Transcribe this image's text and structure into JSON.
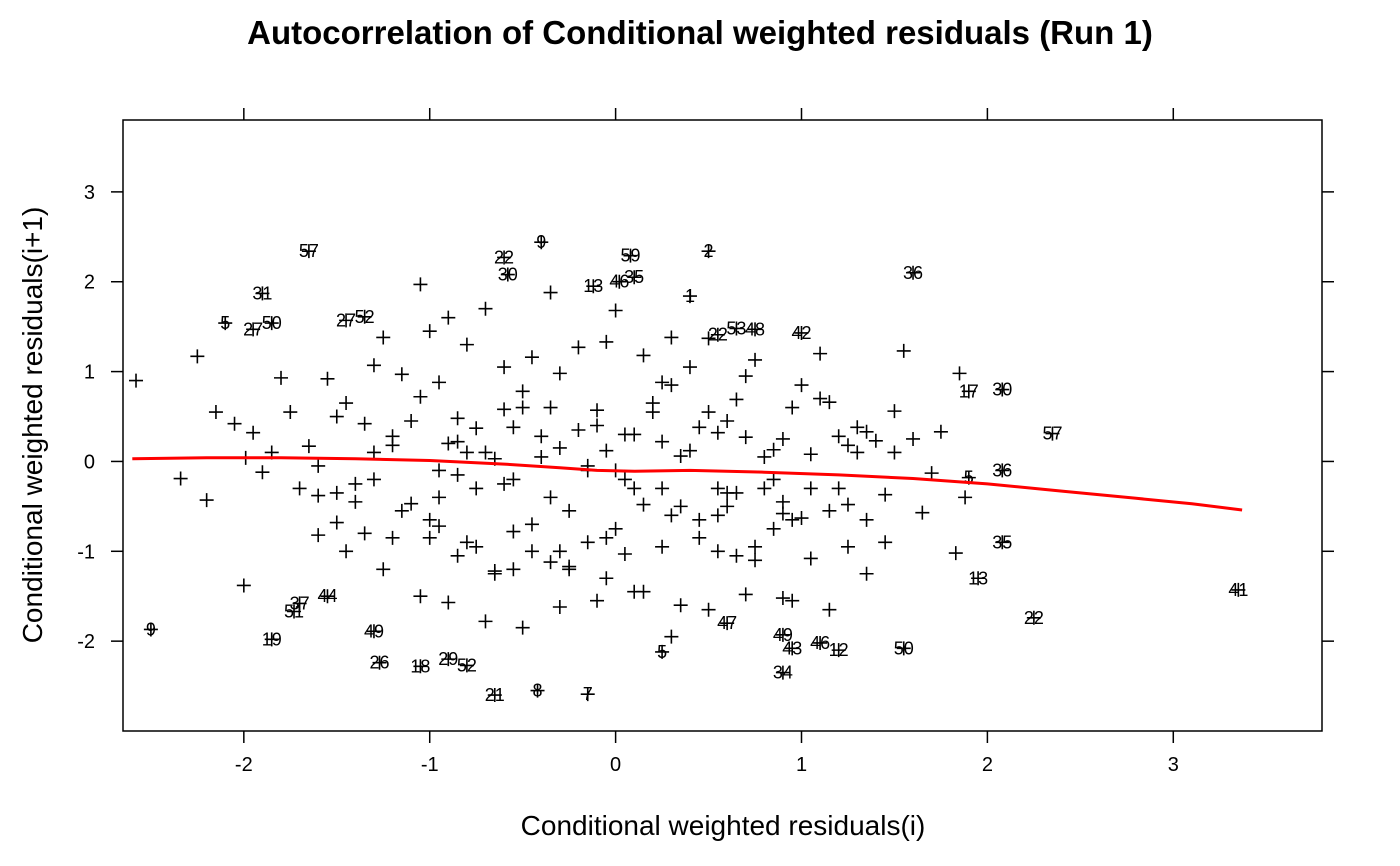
{
  "chart_data": {
    "type": "scatter",
    "title": "Autocorrelation of Conditional weighted residuals (Run 1)",
    "xlabel": "Conditional weighted residuals(i)",
    "ylabel": "Conditional weighted residuals(i+1)",
    "xlim": [
      -2.65,
      3.8
    ],
    "ylim": [
      -3.0,
      3.8
    ],
    "x_ticks": [
      -2,
      -1,
      0,
      1,
      2,
      3
    ],
    "y_ticks": [
      -2,
      -1,
      0,
      1,
      2,
      3
    ],
    "x_tick_labels": [
      "-2",
      "-1",
      "0",
      "1",
      "2",
      "3"
    ],
    "y_tick_labels": [
      "-2",
      "-1",
      "0",
      "1",
      "2",
      "3"
    ],
    "grid": false,
    "marker": "+",
    "marker_color": "#000000",
    "smooth_color": "#ff0000",
    "labeled_points": [
      {
        "x": -1.65,
        "y": 2.34,
        "label": "57"
      },
      {
        "x": -0.6,
        "y": 2.27,
        "label": "22"
      },
      {
        "x": -0.4,
        "y": 2.44,
        "label": "9"
      },
      {
        "x": -0.58,
        "y": 2.08,
        "label": "30"
      },
      {
        "x": 0.08,
        "y": 2.29,
        "label": "59"
      },
      {
        "x": 0.5,
        "y": 2.34,
        "label": "2"
      },
      {
        "x": -0.12,
        "y": 1.95,
        "label": "13"
      },
      {
        "x": 0.02,
        "y": 2.0,
        "label": "46"
      },
      {
        "x": 0.1,
        "y": 2.05,
        "label": "35"
      },
      {
        "x": 0.4,
        "y": 1.84,
        "label": "1"
      },
      {
        "x": 1.6,
        "y": 2.1,
        "label": "36"
      },
      {
        "x": -1.9,
        "y": 1.87,
        "label": "31"
      },
      {
        "x": -2.1,
        "y": 1.54,
        "label": "5"
      },
      {
        "x": -1.85,
        "y": 1.54,
        "label": "50"
      },
      {
        "x": -1.95,
        "y": 1.47,
        "label": "27"
      },
      {
        "x": -1.35,
        "y": 1.61,
        "label": "52"
      },
      {
        "x": -1.45,
        "y": 1.57,
        "label": "27"
      },
      {
        "x": 0.55,
        "y": 1.41,
        "label": "22"
      },
      {
        "x": 0.65,
        "y": 1.48,
        "label": "53"
      },
      {
        "x": 0.75,
        "y": 1.47,
        "label": "48"
      },
      {
        "x": 1.0,
        "y": 1.43,
        "label": "42"
      },
      {
        "x": 1.9,
        "y": 0.78,
        "label": "17"
      },
      {
        "x": 2.08,
        "y": 0.8,
        "label": "30"
      },
      {
        "x": 2.35,
        "y": 0.31,
        "label": "57"
      },
      {
        "x": 2.08,
        "y": -0.1,
        "label": "36"
      },
      {
        "x": 1.9,
        "y": -0.18,
        "label": "5"
      },
      {
        "x": 2.08,
        "y": -0.9,
        "label": "35"
      },
      {
        "x": 1.95,
        "y": -1.3,
        "label": "13"
      },
      {
        "x": 2.25,
        "y": -1.74,
        "label": "22"
      },
      {
        "x": 3.35,
        "y": -1.43,
        "label": "41"
      },
      {
        "x": -2.5,
        "y": -1.87,
        "label": "9"
      },
      {
        "x": -1.85,
        "y": -1.98,
        "label": "19"
      },
      {
        "x": -1.7,
        "y": -1.58,
        "label": "37"
      },
      {
        "x": -1.55,
        "y": -1.5,
        "label": "44"
      },
      {
        "x": -1.73,
        "y": -1.67,
        "label": "51"
      },
      {
        "x": -1.3,
        "y": -1.89,
        "label": "49"
      },
      {
        "x": -1.27,
        "y": -2.24,
        "label": "26"
      },
      {
        "x": -1.05,
        "y": -2.28,
        "label": "18"
      },
      {
        "x": -0.9,
        "y": -2.2,
        "label": "29"
      },
      {
        "x": -0.8,
        "y": -2.27,
        "label": "52"
      },
      {
        "x": -0.65,
        "y": -2.6,
        "label": "21"
      },
      {
        "x": -0.42,
        "y": -2.55,
        "label": "8"
      },
      {
        "x": -0.15,
        "y": -2.59,
        "label": "7"
      },
      {
        "x": 0.25,
        "y": -2.12,
        "label": "5"
      },
      {
        "x": 0.6,
        "y": -1.8,
        "label": "47"
      },
      {
        "x": 0.9,
        "y": -1.93,
        "label": "49"
      },
      {
        "x": 0.95,
        "y": -2.08,
        "label": "43"
      },
      {
        "x": 1.1,
        "y": -2.02,
        "label": "46"
      },
      {
        "x": 1.2,
        "y": -2.1,
        "label": "12"
      },
      {
        "x": 1.55,
        "y": -2.08,
        "label": "50"
      },
      {
        "x": 0.9,
        "y": -2.35,
        "label": "34"
      }
    ],
    "points_x": [
      -2.58,
      -2.34,
      -2.25,
      -2.15,
      -2.05,
      -2.0,
      -1.95,
      -2.2,
      -1.99,
      -1.9,
      -1.85,
      -1.8,
      -1.75,
      -1.7,
      -1.65,
      -1.6,
      -1.55,
      -1.5,
      -1.45,
      -1.4,
      -1.35,
      -1.3,
      -1.25,
      -1.2,
      -1.15,
      -1.1,
      -1.05,
      -1.0,
      -0.95,
      -0.9,
      -0.85,
      -0.8,
      -0.75,
      -0.7,
      -0.65,
      -0.6,
      -0.55,
      -0.5,
      -0.45,
      -0.4,
      -0.35,
      -0.3,
      -0.25,
      -0.2,
      -0.15,
      -0.1,
      -0.05,
      0.0,
      0.05,
      0.1,
      0.15,
      0.2,
      0.25,
      0.3,
      0.35,
      0.4,
      0.45,
      0.5,
      0.55,
      0.6,
      0.65,
      0.7,
      0.75,
      0.8,
      0.85,
      0.9,
      0.95,
      1.0,
      1.05,
      1.1,
      1.15,
      1.2,
      1.25,
      1.3,
      1.35,
      1.4,
      1.45,
      1.5,
      1.55,
      1.6,
      1.65,
      1.7,
      1.75,
      1.85,
      1.88,
      1.83,
      -1.6,
      -1.3,
      -1.2,
      -1.0,
      -0.95,
      -0.85,
      -0.75,
      -0.6,
      -0.55,
      -0.45,
      -0.35,
      -0.25,
      -0.15,
      -0.05,
      0.05,
      0.15,
      0.25,
      0.35,
      0.45,
      0.55,
      0.65,
      0.75,
      0.85,
      0.95,
      1.05,
      1.15,
      1.25,
      1.35,
      1.45,
      -1.45,
      -1.25,
      -1.05,
      -0.85,
      -0.65,
      -0.45,
      -0.25,
      -0.05,
      0.15,
      0.35,
      0.55,
      0.75,
      0.95,
      1.15,
      1.35,
      -1.6,
      -1.5,
      -1.4,
      -1.3,
      -1.1,
      -0.9,
      -0.7,
      -0.5,
      -0.3,
      -0.1,
      0.1,
      0.3,
      0.5,
      0.7,
      0.9,
      1.1,
      1.3,
      1.5,
      -1.5,
      -1.35,
      -1.15,
      -0.95,
      -0.75,
      -0.55,
      -0.35,
      -0.15,
      0.05,
      0.25,
      0.45,
      0.65,
      0.85,
      1.05,
      1.25,
      -1.05,
      -0.95,
      -0.8,
      -0.6,
      -0.4,
      -0.2,
      0.0,
      0.2,
      0.4,
      0.6,
      0.8,
      1.0,
      1.2,
      -0.9,
      -0.7,
      -0.5,
      -0.3,
      -0.1,
      0.1,
      0.3,
      0.5,
      0.7,
      0.9,
      -0.85,
      -0.65,
      -0.35,
      -0.05,
      0.25,
      0.55,
      -1.2,
      -1.0,
      -0.8,
      -0.55,
      -0.3,
      0.0,
      0.3,
      0.6,
      0.9,
      1.2
    ],
    "points_y": [
      0.9,
      -0.19,
      1.17,
      0.55,
      0.42,
      -1.38,
      0.32,
      -0.43,
      0.04,
      -0.12,
      0.1,
      0.93,
      0.55,
      -0.3,
      0.17,
      -0.05,
      0.92,
      0.5,
      0.65,
      -0.45,
      0.42,
      1.07,
      1.38,
      0.28,
      0.97,
      -0.47,
      1.97,
      1.45,
      -0.72,
      1.6,
      0.22,
      1.3,
      0.37,
      1.7,
      -1.22,
      1.05,
      -0.2,
      0.78,
      1.16,
      0.28,
      1.88,
      0.98,
      -1.17,
      1.27,
      -0.1,
      0.57,
      1.33,
      1.68,
      0.3,
      -0.3,
      1.18,
      0.55,
      0.88,
      1.38,
      0.06,
      1.05,
      0.38,
      1.37,
      0.32,
      -0.5,
      0.69,
      0.27,
      1.13,
      -0.3,
      0.13,
      -0.58,
      0.6,
      -0.63,
      0.08,
      1.2,
      0.66,
      -0.3,
      0.18,
      0.1,
      0.33,
      0.23,
      -0.37,
      0.56,
      1.23,
      0.25,
      -0.57,
      -0.13,
      0.33,
      0.98,
      -0.4,
      -1.02,
      -0.38,
      -0.2,
      0.18,
      -0.85,
      -0.1,
      -0.15,
      -0.3,
      -0.25,
      0.38,
      -0.7,
      -0.4,
      -0.55,
      -0.05,
      -0.85,
      -0.2,
      -0.48,
      -0.3,
      -0.5,
      -0.65,
      -0.6,
      -0.35,
      -0.95,
      -0.2,
      -0.65,
      -0.3,
      -0.55,
      -0.48,
      -0.65,
      -0.9,
      -1.0,
      -1.2,
      -1.5,
      -1.05,
      -1.25,
      -1.0,
      -1.2,
      -1.3,
      -1.45,
      -1.6,
      -1.0,
      -1.1,
      -1.55,
      -1.65,
      -1.25,
      -0.82,
      -0.68,
      -0.25,
      0.1,
      0.45,
      0.2,
      0.1,
      0.6,
      0.15,
      0.4,
      0.3,
      0.85,
      0.55,
      0.95,
      0.25,
      0.7,
      0.38,
      0.1,
      -0.35,
      -0.8,
      -0.55,
      -0.4,
      -0.95,
      -0.78,
      -1.12,
      -0.9,
      -1.03,
      -0.95,
      -0.85,
      -1.05,
      -0.75,
      -1.08,
      -0.95,
      0.72,
      0.88,
      0.1,
      0.58,
      0.05,
      0.35,
      -0.1,
      0.65,
      0.12,
      0.45,
      0.05,
      0.85,
      0.28,
      -1.57,
      -1.78,
      -1.85,
      -1.62,
      -1.55,
      -1.45,
      -1.95,
      -1.65,
      -1.48,
      -1.52,
      0.48,
      0.03,
      0.6,
      0.12,
      0.22,
      -0.3,
      -0.85,
      -0.65,
      -0.9,
      -1.2,
      -1.0,
      -0.75,
      -0.6,
      -0.35,
      -0.45
    ],
    "smooth_x": [
      -2.6,
      -2.2,
      -1.8,
      -1.4,
      -1.0,
      -0.6,
      -0.3,
      -0.1,
      0.1,
      0.4,
      0.8,
      1.2,
      1.6,
      2.0,
      2.4,
      2.8,
      3.1,
      3.37
    ],
    "smooth_y": [
      0.03,
      0.04,
      0.04,
      0.03,
      0.01,
      -0.03,
      -0.07,
      -0.1,
      -0.11,
      -0.1,
      -0.12,
      -0.15,
      -0.19,
      -0.25,
      -0.33,
      -0.41,
      -0.47,
      -0.54
    ]
  }
}
